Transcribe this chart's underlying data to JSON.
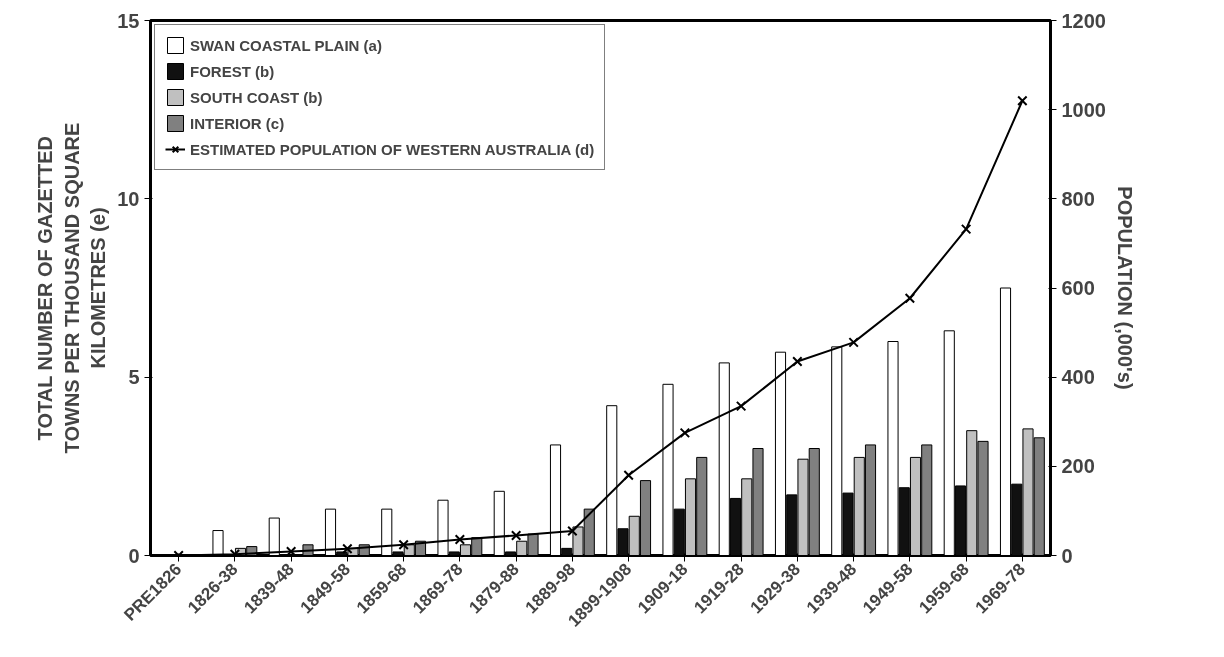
{
  "chart_data": {
    "type": "bar",
    "ylabel": "TOTAL NUMBER OF GAZETTED TOWNS PER THOUSAND SQUARE KILOMETRES (e)",
    "y2label": "POPULATION (,000's)",
    "categories": [
      "PRE1826",
      "1826-38",
      "1839-48",
      "1849-58",
      "1859-68",
      "1869-78",
      "1879-88",
      "1889-98",
      "1899-1908",
      "1909-18",
      "1919-28",
      "1929-38",
      "1939-48",
      "1949-58",
      "1959-68",
      "1969-78"
    ],
    "series": [
      {
        "name": "SWAN COASTAL PLAIN (a)",
        "color": "#ffffff",
        "values": [
          0,
          0.7,
          1.05,
          1.3,
          1.3,
          1.55,
          1.8,
          3.1,
          4.2,
          4.8,
          5.4,
          5.7,
          5.85,
          6.0,
          6.3,
          7.5
        ]
      },
      {
        "name": "FOREST (b)",
        "color": "#111111",
        "values": [
          0,
          null,
          null,
          0.1,
          0.1,
          0.1,
          0.1,
          0.2,
          0.75,
          1.3,
          1.6,
          1.7,
          1.75,
          1.9,
          1.95,
          2.0
        ]
      },
      {
        "name": "SOUTH COAST (b)",
        "color": "#c0c0c0",
        "values": [
          0,
          0.2,
          null,
          0.2,
          0.3,
          0.3,
          0.4,
          0.8,
          1.1,
          2.15,
          2.15,
          2.7,
          2.75,
          2.75,
          3.5,
          3.55
        ]
      },
      {
        "name": "INTERIOR (c)",
        "color": "#808080",
        "values": [
          0,
          0.25,
          0.3,
          0.3,
          0.4,
          0.5,
          0.6,
          1.3,
          2.1,
          2.75,
          3.0,
          3.0,
          3.1,
          3.1,
          3.2,
          3.3
        ]
      },
      {
        "name": "ESTIMATED POPULATION OF WESTERN AUSTRALIA (d)",
        "type": "line",
        "axis": "y2",
        "marker": "cross",
        "color": "#000000",
        "values": [
          0,
          3,
          9,
          15,
          24,
          36,
          45,
          55,
          180,
          275,
          335,
          435,
          478,
          577,
          732,
          1020
        ]
      }
    ],
    "ylim": [
      0,
      15
    ],
    "yticks": [
      0,
      5,
      10,
      15
    ],
    "y2lim": [
      0,
      1200
    ],
    "y2ticks": [
      0,
      200,
      400,
      600,
      800,
      1000,
      1200
    ],
    "grid": false,
    "legend": "top left"
  }
}
